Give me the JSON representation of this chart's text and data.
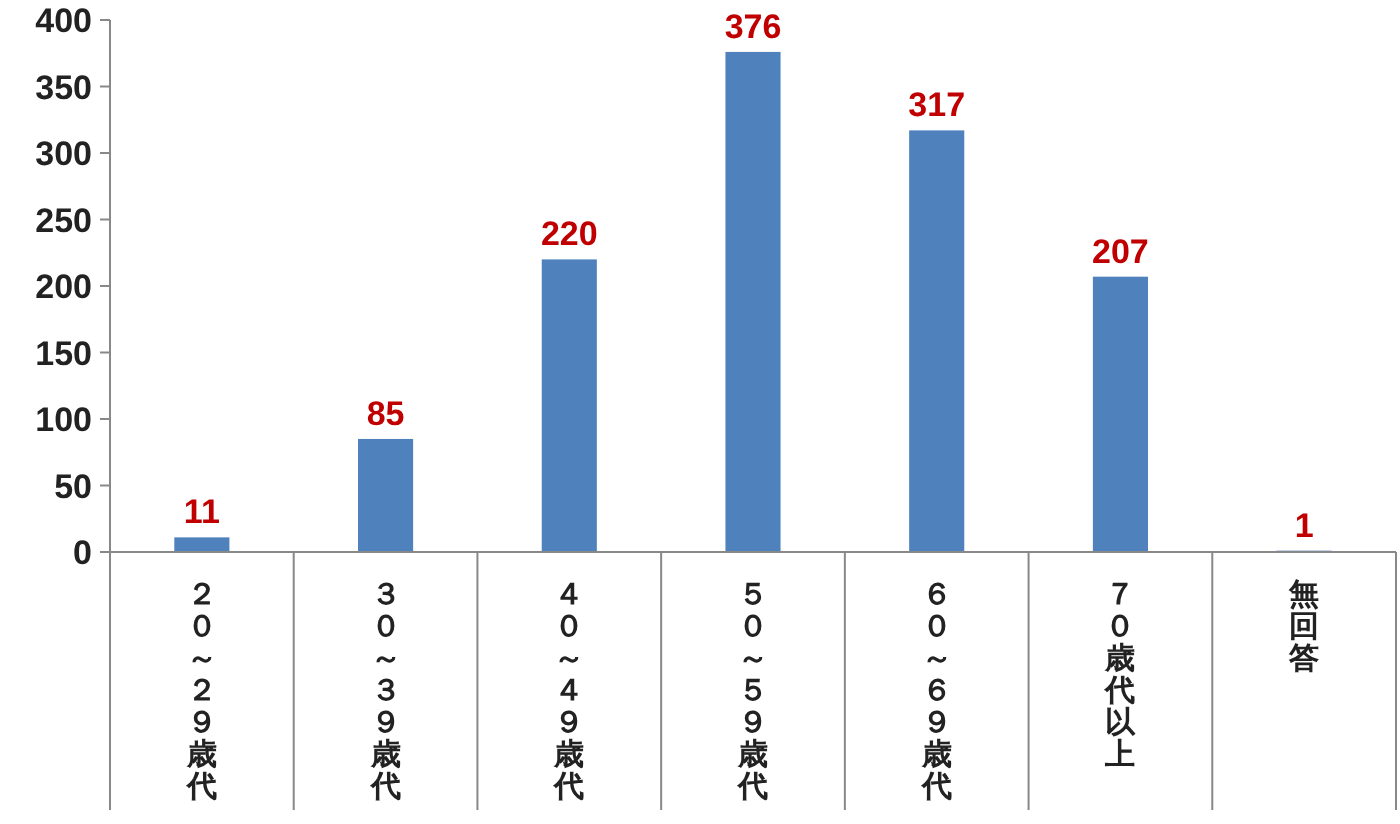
{
  "chart_data": {
    "type": "bar",
    "categories": [
      "２０～２９歳代",
      "３０～３９歳代",
      "４０～４９歳代",
      "５０～５９歳代",
      "６０～６９歳代",
      "７０歳代以上",
      "無回答"
    ],
    "values": [
      11,
      85,
      220,
      376,
      317,
      207,
      1
    ],
    "color": "#4f81bd",
    "ylim": [
      0,
      400
    ],
    "yticks": [
      0,
      50,
      100,
      150,
      200,
      250,
      300,
      350,
      400
    ],
    "data_labels": true,
    "grid": false
  }
}
